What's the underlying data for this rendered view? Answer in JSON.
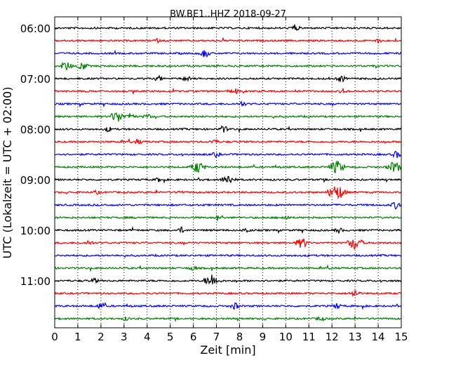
{
  "chart_data": {
    "type": "line",
    "title": "BW.BE1..HHZ 2018-09-27",
    "xlabel": "Zeit  [min]",
    "ylabel": "UTC (Lokalzeit = UTC + 02:00)",
    "xlim": [
      0,
      15
    ],
    "x_ticks": [
      "0",
      "1",
      "2",
      "3",
      "4",
      "5",
      "6",
      "7",
      "8",
      "9",
      "10",
      "11",
      "12",
      "13",
      "14",
      "15"
    ],
    "y_ticks": [
      "06:00",
      "07:00",
      "08:00",
      "09:00",
      "10:00",
      "11:00"
    ],
    "grid": true,
    "trace_colors": [
      "#000000",
      "#ff0000",
      "#0000ff",
      "#008000"
    ],
    "traces": [
      {
        "start": "06:00",
        "events": [
          [
            10.4,
            0.5
          ]
        ]
      },
      {
        "start": "06:15",
        "events": [
          [
            4.4,
            0.3
          ],
          [
            14.0,
            0.3
          ]
        ]
      },
      {
        "start": "06:30",
        "events": [
          [
            6.5,
            0.6
          ]
        ]
      },
      {
        "start": "06:45",
        "events": [
          [
            0.5,
            0.7
          ],
          [
            1.2,
            0.6
          ]
        ]
      },
      {
        "start": "07:00",
        "events": [
          [
            4.5,
            0.4
          ],
          [
            5.7,
            0.4
          ],
          [
            12.4,
            0.5
          ]
        ]
      },
      {
        "start": "07:15",
        "events": [
          [
            7.8,
            0.4
          ],
          [
            12.5,
            0.4
          ]
        ]
      },
      {
        "start": "07:30",
        "events": [
          [
            8.1,
            0.4
          ]
        ]
      },
      {
        "start": "07:45",
        "events": [
          [
            2.7,
            0.9
          ],
          [
            3.3,
            0.5
          ],
          [
            4.0,
            0.4
          ]
        ]
      },
      {
        "start": "08:00",
        "events": [
          [
            2.3,
            0.4
          ],
          [
            7.3,
            0.5
          ]
        ]
      },
      {
        "start": "08:15",
        "events": [
          [
            3.6,
            0.4
          ],
          [
            6.9,
            0.4
          ]
        ]
      },
      {
        "start": "08:30",
        "events": [
          [
            7.0,
            0.4
          ],
          [
            14.8,
            0.5
          ]
        ]
      },
      {
        "start": "08:45",
        "events": [
          [
            6.2,
            0.9
          ],
          [
            12.2,
            1.0
          ],
          [
            14.7,
            0.9
          ]
        ]
      },
      {
        "start": "09:00",
        "events": [
          [
            4.5,
            0.3
          ],
          [
            7.5,
            0.8
          ]
        ]
      },
      {
        "start": "09:15",
        "events": [
          [
            1.8,
            0.3
          ],
          [
            5.4,
            0.3
          ],
          [
            12.2,
            1.2
          ]
        ]
      },
      {
        "start": "09:30",
        "events": [
          [
            14.8,
            0.6
          ]
        ]
      },
      {
        "start": "09:45",
        "events": [
          [
            7.1,
            0.5
          ],
          [
            10.0,
            0.4
          ]
        ]
      },
      {
        "start": "10:00",
        "events": [
          [
            5.5,
            0.4
          ],
          [
            8.3,
            0.4
          ],
          [
            12.3,
            0.4
          ]
        ]
      },
      {
        "start": "10:15",
        "events": [
          [
            1.5,
            0.4
          ],
          [
            10.7,
            0.8
          ],
          [
            13.0,
            1.0
          ]
        ]
      },
      {
        "start": "10:30",
        "events": []
      },
      {
        "start": "10:45",
        "events": [
          [
            6.0,
            0.4
          ]
        ]
      },
      {
        "start": "11:00",
        "events": [
          [
            1.7,
            0.4
          ],
          [
            6.8,
            1.0
          ]
        ]
      },
      {
        "start": "11:15",
        "events": [
          [
            13.0,
            0.6
          ]
        ]
      },
      {
        "start": "11:30",
        "events": [
          [
            2.0,
            0.5
          ],
          [
            7.8,
            0.5
          ],
          [
            12.2,
            0.4
          ]
        ]
      },
      {
        "start": "11:45",
        "events": [
          [
            3.1,
            0.3
          ],
          [
            11.5,
            0.4
          ]
        ]
      }
    ]
  }
}
